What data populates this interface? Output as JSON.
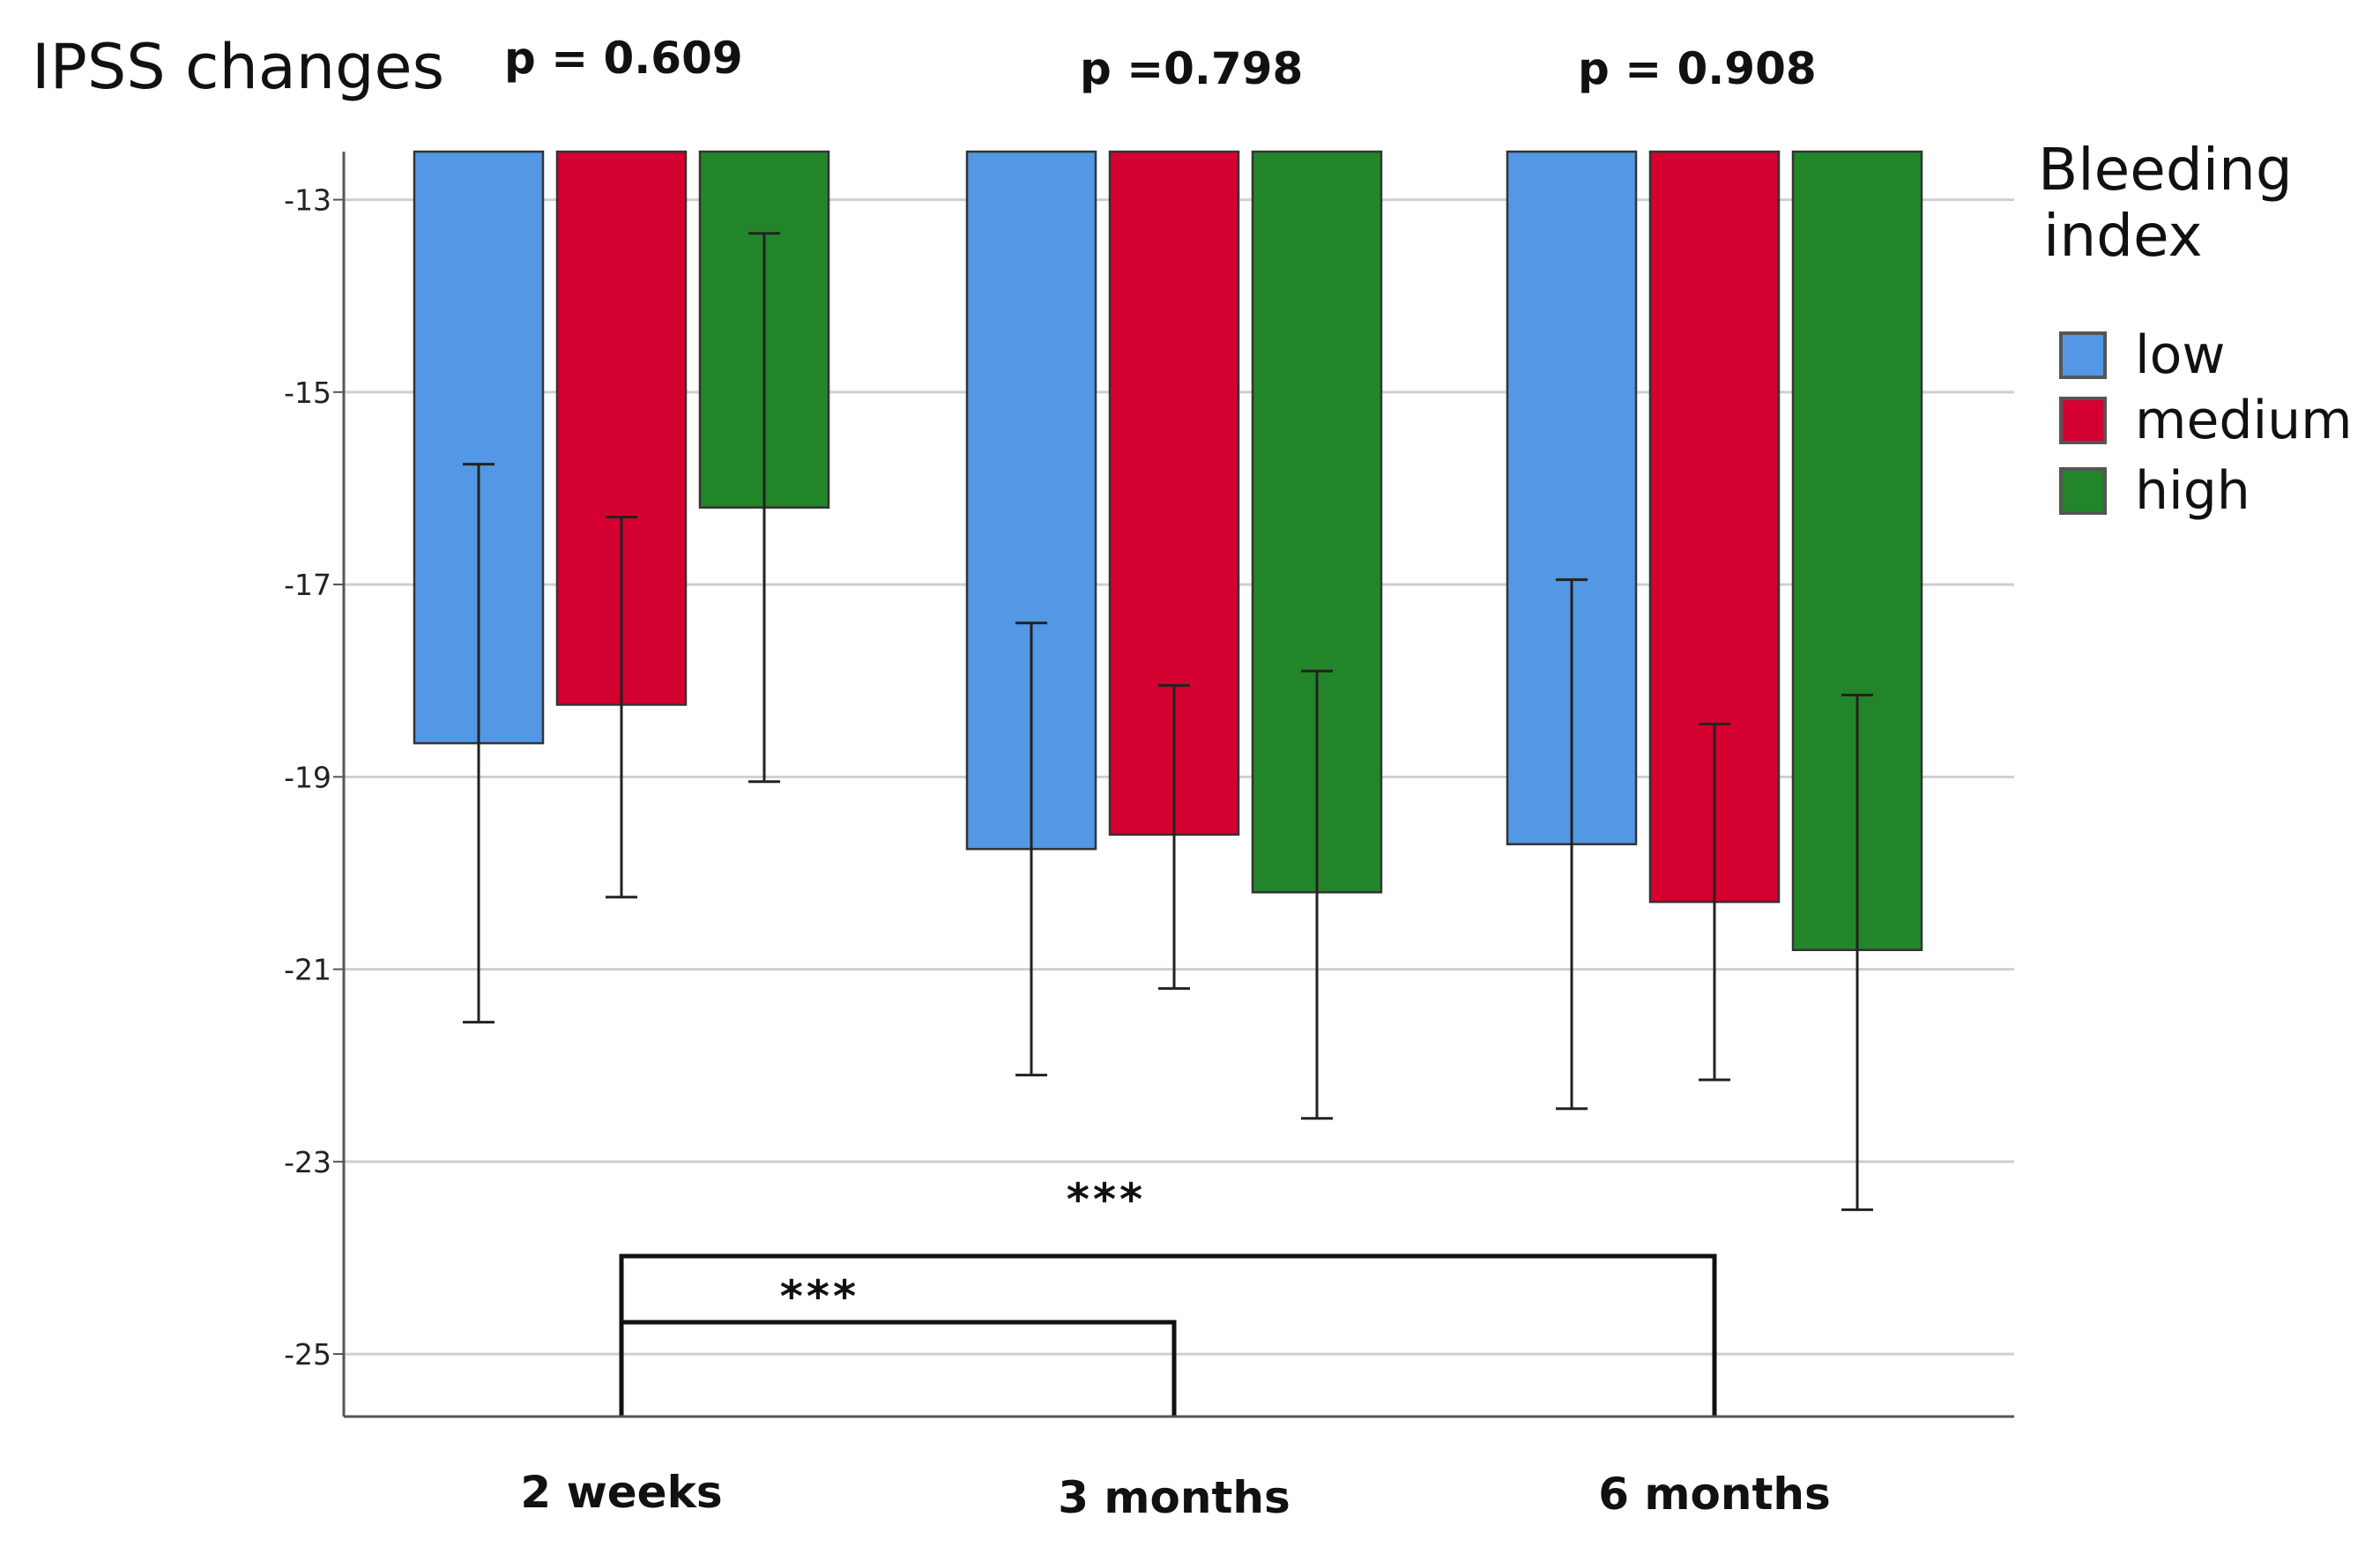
{
  "chart_data": {
    "type": "bar",
    "title": "IPSS changes",
    "xlabel": "",
    "ylabel": "",
    "categories": [
      "2 weeks",
      "3 months",
      "6 months"
    ],
    "p_values": [
      "p = 0.609",
      "p =0.798",
      "p = 0.908"
    ],
    "ylim": [
      -25.65,
      -12.5
    ],
    "yticks": [
      -13,
      -15,
      -17,
      -19,
      -21,
      -23,
      -25
    ],
    "grid": true,
    "legend": {
      "title_lines": [
        "Bleeding",
        "index"
      ],
      "position": "right"
    },
    "series": [
      {
        "name": "low",
        "color": "#5497e4",
        "values": [
          -18.65,
          -19.75,
          -19.7
        ],
        "err_low": [
          -21.55,
          -22.1,
          -22.45
        ],
        "err_high": [
          -15.75,
          -17.4,
          -16.95
        ]
      },
      {
        "name": "medium",
        "color": "#d4002f",
        "values": [
          -18.25,
          -19.6,
          -20.3
        ],
        "err_low": [
          -20.25,
          -21.2,
          -22.15
        ],
        "err_high": [
          -16.3,
          -18.05,
          -18.45
        ]
      },
      {
        "name": "high",
        "color": "#23852a",
        "values": [
          -16.2,
          -20.2,
          -20.8
        ],
        "err_low": [
          -19.05,
          -22.55,
          -23.5
        ],
        "err_high": [
          -13.35,
          -17.9,
          -18.15
        ]
      }
    ],
    "significance": [
      {
        "label": "***",
        "from": "2 weeks",
        "to": "3 months"
      },
      {
        "label": "***",
        "from": "2 weeks",
        "to": "6 months"
      }
    ]
  }
}
